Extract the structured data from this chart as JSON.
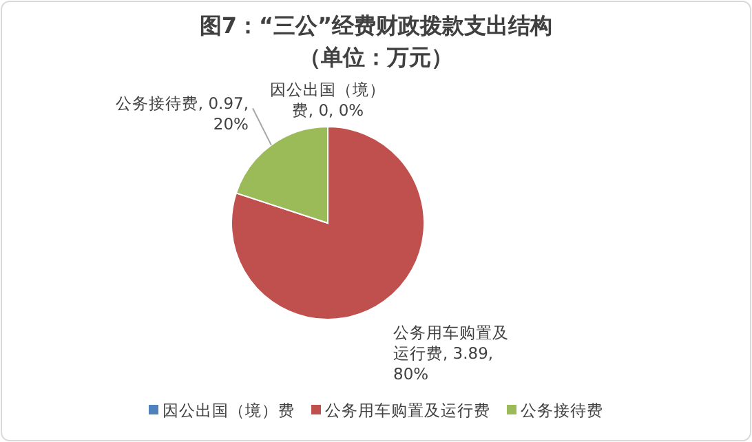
{
  "chart_data": {
    "type": "pie",
    "title": "图7：“三公”经费财政拨款支出结构",
    "subtitle": "（单位：万元）",
    "categories": [
      "因公出国（境）费",
      "公务用车购置及运行费",
      "公务接待费"
    ],
    "values": [
      0,
      3.89,
      0.97
    ],
    "colors": [
      "#4f81bd",
      "#c0504d",
      "#9bbb59"
    ],
    "value_labels": [
      "因公出国（境）费, 0, 0%",
      "公务用车购置及运行费, 3.89, 80%",
      "公务接待费, 0.97, 20%"
    ],
    "legend": "bottom"
  }
}
